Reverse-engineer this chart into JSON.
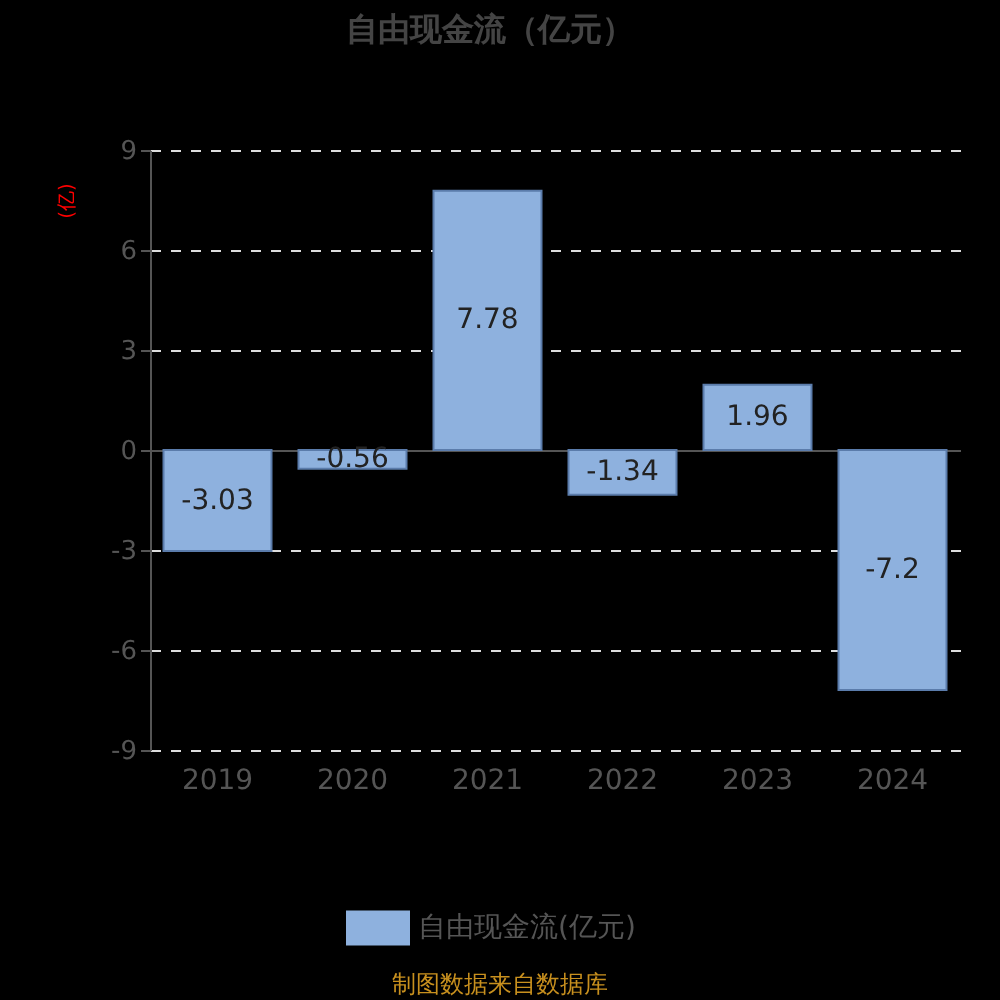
{
  "chart_data": {
    "type": "bar",
    "title": "自由现金流（亿元）",
    "ylabel": "(亿)",
    "categories": [
      "2019",
      "2020",
      "2021",
      "2022",
      "2023",
      "2024"
    ],
    "series": [
      {
        "name": "自由现金流(亿元)",
        "color": "#8eb1de",
        "values": [
          -3.03,
          -0.56,
          7.78,
          -1.34,
          1.96,
          -7.2
        ]
      }
    ],
    "ylim": [
      -9,
      9
    ],
    "yticks": [
      -9,
      -6,
      -3,
      0,
      3,
      6,
      9
    ],
    "grid": "y",
    "legend": "bottom",
    "data_labels": true,
    "annotations": [
      "制图数据来自数据库"
    ]
  }
}
